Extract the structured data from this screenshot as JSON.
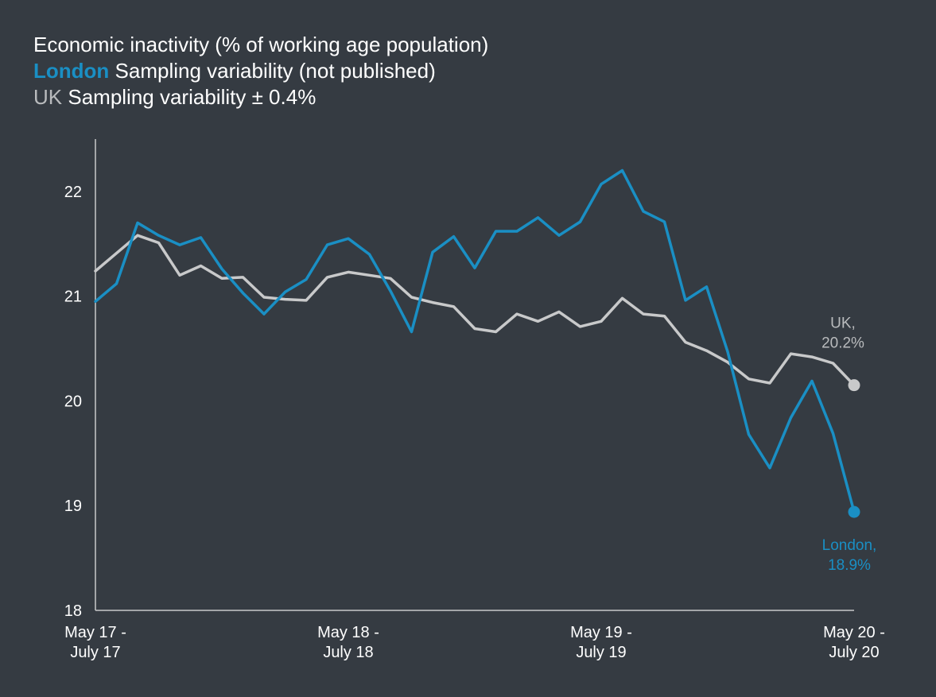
{
  "chart_data": {
    "type": "line",
    "title": "Economic inactivity (% of working age population)",
    "legend": [
      {
        "key": "London",
        "text": "Sampling variability (not published)",
        "color": "#1a8fc4"
      },
      {
        "key": "UK",
        "text": "Sampling variability ± 0.4%",
        "color": "#c8c9ca"
      }
    ],
    "ylim": [
      18,
      22.5
    ],
    "yticks": [
      18,
      19,
      20,
      21,
      22
    ],
    "xticks": [
      {
        "index": 0,
        "line1": "May 17 -",
        "line2": "July 17"
      },
      {
        "index": 12,
        "line1": "May 18 -",
        "line2": "July 18"
      },
      {
        "index": 24,
        "line1": "May 19 -",
        "line2": "July 19"
      },
      {
        "index": 36,
        "line1": "May 20 -",
        "line2": "July 20"
      }
    ],
    "series": [
      {
        "name": "London",
        "color": "#1a8fc4",
        "end_label": [
          "London,",
          "18.9%"
        ],
        "values": [
          20.95,
          21.12,
          21.7,
          21.58,
          21.49,
          21.56,
          21.26,
          21.03,
          20.83,
          21.04,
          21.16,
          21.49,
          21.55,
          21.4,
          21.05,
          20.66,
          21.42,
          21.57,
          21.27,
          21.62,
          21.62,
          21.75,
          21.58,
          21.71,
          22.07,
          22.2,
          21.81,
          21.71,
          20.96,
          21.09,
          20.47,
          19.68,
          19.36,
          19.84,
          20.19,
          19.69,
          18.94
        ]
      },
      {
        "name": "UK",
        "color": "#c8c9ca",
        "end_label": [
          "UK,",
          "20.2%"
        ],
        "values": [
          21.24,
          21.41,
          21.58,
          21.51,
          21.2,
          21.29,
          21.17,
          21.18,
          20.99,
          20.97,
          20.96,
          21.18,
          21.23,
          21.2,
          21.17,
          20.99,
          20.94,
          20.9,
          20.69,
          20.66,
          20.83,
          20.76,
          20.85,
          20.71,
          20.76,
          20.98,
          20.83,
          20.81,
          20.56,
          20.48,
          20.37,
          20.21,
          20.17,
          20.45,
          20.42,
          20.36,
          20.15
        ]
      }
    ]
  }
}
